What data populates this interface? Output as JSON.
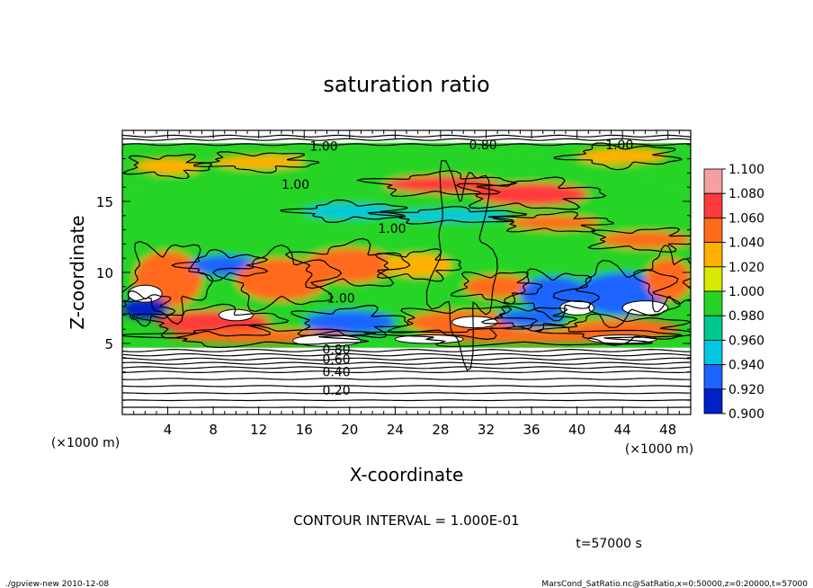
{
  "chart_data": {
    "type": "heatmap",
    "title": "saturation ratio",
    "xlabel": "X-coordinate",
    "ylabel": "Z-coordinate",
    "x_unit": "(×1000 m)",
    "y_unit": "(×1000 m)",
    "xlim": [
      0,
      50
    ],
    "ylim": [
      0,
      20
    ],
    "x_ticks": [
      4,
      8,
      12,
      16,
      20,
      24,
      28,
      32,
      36,
      40,
      44,
      48
    ],
    "y_ticks": [
      5,
      10,
      15
    ],
    "colorbar": {
      "levels": [
        1.1,
        1.08,
        1.06,
        1.04,
        1.02,
        1.0,
        0.98,
        0.96,
        0.94,
        0.92,
        0.9
      ],
      "labels": [
        "1.100",
        "1.080",
        "1.060",
        "1.040",
        "1.020",
        "1.000",
        "0.980",
        "0.960",
        "0.940",
        "0.920",
        "0.900"
      ],
      "colors": [
        "#f4a0a0",
        "#ff3a3a",
        "#ff6a1a",
        "#ffb000",
        "#d8e800",
        "#26d426",
        "#00c88c",
        "#00c8e0",
        "#1a64ff",
        "#0020c8",
        "#5a00aa"
      ]
    },
    "contour_labels": [
      {
        "text": "1.00",
        "x": 16.5,
        "z": 18.9
      },
      {
        "text": "0.80",
        "x": 30.5,
        "z": 19.0
      },
      {
        "text": "1.00",
        "x": 42.5,
        "z": 19.0
      },
      {
        "text": "1.00",
        "x": 14.0,
        "z": 16.2
      },
      {
        "text": "1.00",
        "x": 22.5,
        "z": 13.1
      },
      {
        "text": "1.00",
        "x": 18.0,
        "z": 8.2
      },
      {
        "text": "0.80",
        "x": 17.6,
        "z": 4.6
      },
      {
        "text": "0.60",
        "x": 17.6,
        "z": 3.9
      },
      {
        "text": "0.40",
        "x": 17.6,
        "z": 3.0
      },
      {
        "text": "0.20",
        "x": 17.6,
        "z": 1.7
      }
    ],
    "low_contours_z": [
      0.5,
      1.0,
      1.5,
      2.0,
      2.5,
      3.0,
      3.3,
      3.6,
      3.9,
      4.2,
      4.5
    ],
    "regions": [
      {
        "x": 25,
        "z": 12,
        "rx": 30,
        "rz": 7,
        "v": 1.0
      },
      {
        "x": 28,
        "z": 16.2,
        "rx": 5,
        "rz": 0.6,
        "v": 1.075
      },
      {
        "x": 36,
        "z": 15.5,
        "rx": 5,
        "rz": 0.8,
        "v": 1.07
      },
      {
        "x": 4,
        "z": 17.5,
        "rx": 3,
        "rz": 0.6,
        "v": 1.04
      },
      {
        "x": 12,
        "z": 17.8,
        "rx": 4,
        "rz": 0.5,
        "v": 1.035
      },
      {
        "x": 44,
        "z": 18.2,
        "rx": 4,
        "rz": 0.6,
        "v": 1.035
      },
      {
        "x": 20,
        "z": 14.3,
        "rx": 4,
        "rz": 0.5,
        "v": 0.96
      },
      {
        "x": 29,
        "z": 14.0,
        "rx": 5,
        "rz": 0.4,
        "v": 0.965
      },
      {
        "x": 38,
        "z": 13.5,
        "rx": 4,
        "rz": 0.5,
        "v": 1.06
      },
      {
        "x": 46,
        "z": 12.3,
        "rx": 4,
        "rz": 0.6,
        "v": 1.06
      },
      {
        "x": 4,
        "z": 9.5,
        "rx": 3,
        "rz": 2.0,
        "v": 1.06
      },
      {
        "x": 2,
        "z": 7.5,
        "rx": 2,
        "rz": 0.8,
        "v": 0.91
      },
      {
        "x": 9,
        "z": 10.5,
        "rx": 3,
        "rz": 0.7,
        "v": 0.94
      },
      {
        "x": 14,
        "z": 9.5,
        "rx": 4,
        "rz": 1.5,
        "v": 1.05
      },
      {
        "x": 20,
        "z": 10.5,
        "rx": 4,
        "rz": 1.2,
        "v": 1.06
      },
      {
        "x": 26,
        "z": 10.5,
        "rx": 3,
        "rz": 0.8,
        "v": 1.04
      },
      {
        "x": 33,
        "z": 9.0,
        "rx": 3,
        "rz": 0.8,
        "v": 1.06
      },
      {
        "x": 38,
        "z": 8.5,
        "rx": 3,
        "rz": 1.2,
        "v": 0.93
      },
      {
        "x": 44,
        "z": 8.5,
        "rx": 4,
        "rz": 1.5,
        "v": 0.94
      },
      {
        "x": 48,
        "z": 9.5,
        "rx": 2,
        "rz": 1.5,
        "v": 1.06
      },
      {
        "x": 8,
        "z": 6.5,
        "rx": 5,
        "rz": 0.8,
        "v": 1.07
      },
      {
        "x": 20,
        "z": 6.5,
        "rx": 4,
        "rz": 0.8,
        "v": 0.93
      },
      {
        "x": 30,
        "z": 6.5,
        "rx": 5,
        "rz": 0.8,
        "v": 1.06
      },
      {
        "x": 36,
        "z": 6.8,
        "rx": 3,
        "rz": 0.6,
        "v": 0.94
      },
      {
        "x": 44,
        "z": 6.0,
        "rx": 5,
        "rz": 0.7,
        "v": 1.06
      },
      {
        "x": 12,
        "z": 5.5,
        "rx": 8,
        "rz": 0.5,
        "v": 1.065
      },
      {
        "x": 36,
        "z": 5.5,
        "rx": 10,
        "rz": 0.5,
        "v": 1.06
      }
    ],
    "white_patches": [
      {
        "x": 2,
        "z": 8.5,
        "rx": 1.5,
        "rz": 0.6
      },
      {
        "x": 10,
        "z": 7.0,
        "rx": 1.5,
        "rz": 0.4
      },
      {
        "x": 18,
        "z": 5.2,
        "rx": 3,
        "rz": 0.4
      },
      {
        "x": 31,
        "z": 6.5,
        "rx": 2,
        "rz": 0.4
      },
      {
        "x": 40,
        "z": 7.5,
        "rx": 1.5,
        "rz": 0.5
      },
      {
        "x": 46,
        "z": 7.5,
        "rx": 2,
        "rz": 0.5
      },
      {
        "x": 27,
        "z": 5.3,
        "rx": 3,
        "rz": 0.3
      },
      {
        "x": 44,
        "z": 5.3,
        "rx": 3,
        "rz": 0.3
      }
    ],
    "contour_interval_text": "CONTOUR INTERVAL = 1.000E-01",
    "time_label": "t=57000 s"
  },
  "footer": {
    "left": "./gpview-new  2010-12-08",
    "right": "MarsCond_SatRatio.nc@SatRatio,x=0:50000,z=0:20000,t=57000"
  }
}
